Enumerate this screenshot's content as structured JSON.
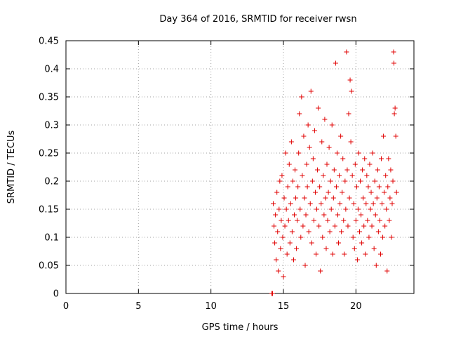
{
  "chart_data": {
    "type": "scatter",
    "title": "Day 364 of 2016, SRMTID for receiver rwsn",
    "xlabel": "GPS time / hours",
    "ylabel": "SRMTID / TECUs",
    "xlim": [
      0,
      24
    ],
    "ylim": [
      0,
      0.45
    ],
    "x_ticks": [
      0,
      5,
      10,
      15,
      20
    ],
    "x_tick_labels": [
      "0",
      "5",
      "10",
      "15",
      "20"
    ],
    "y_ticks": [
      0,
      0.05,
      0.1,
      0.15,
      0.2,
      0.25,
      0.3,
      0.35,
      0.4,
      0.45
    ],
    "y_tick_labels": [
      "0",
      "0.05",
      "0.1",
      "0.15",
      "0.2",
      "0.25",
      "0.3",
      "0.35",
      "0.4",
      "0.45"
    ],
    "grid": true,
    "series": [
      {
        "name": "SRMTID",
        "color": "#e00000",
        "marker": "plus",
        "points": [
          [
            14.2,
            0.0
          ],
          [
            14.25,
            0.0
          ],
          [
            14.3,
            0.16
          ],
          [
            14.35,
            0.12
          ],
          [
            14.4,
            0.09
          ],
          [
            14.45,
            0.14
          ],
          [
            14.5,
            0.06
          ],
          [
            14.55,
            0.18
          ],
          [
            14.6,
            0.11
          ],
          [
            14.65,
            0.04
          ],
          [
            14.7,
            0.15
          ],
          [
            14.75,
            0.2
          ],
          [
            14.8,
            0.08
          ],
          [
            14.85,
            0.13
          ],
          [
            14.9,
            0.21
          ],
          [
            14.95,
            0.1
          ],
          [
            15.0,
            0.03
          ],
          [
            15.05,
            0.17
          ],
          [
            15.1,
            0.12
          ],
          [
            15.15,
            0.25
          ],
          [
            15.2,
            0.15
          ],
          [
            15.25,
            0.07
          ],
          [
            15.3,
            0.19
          ],
          [
            15.35,
            0.13
          ],
          [
            15.4,
            0.23
          ],
          [
            15.45,
            0.09
          ],
          [
            15.5,
            0.16
          ],
          [
            15.55,
            0.27
          ],
          [
            15.6,
            0.11
          ],
          [
            15.65,
            0.2
          ],
          [
            15.7,
            0.06
          ],
          [
            15.75,
            0.14
          ],
          [
            15.8,
            0.22
          ],
          [
            15.85,
            0.17
          ],
          [
            15.9,
            0.08
          ],
          [
            15.95,
            0.13
          ],
          [
            16.0,
            0.19
          ],
          [
            16.05,
            0.25
          ],
          [
            16.1,
            0.32
          ],
          [
            16.15,
            0.15
          ],
          [
            16.2,
            0.1
          ],
          [
            16.25,
            0.35
          ],
          [
            16.3,
            0.21
          ],
          [
            16.35,
            0.12
          ],
          [
            16.4,
            0.28
          ],
          [
            16.45,
            0.17
          ],
          [
            16.5,
            0.05
          ],
          [
            16.55,
            0.14
          ],
          [
            16.6,
            0.23
          ],
          [
            16.65,
            0.19
          ],
          [
            16.7,
            0.3
          ],
          [
            16.75,
            0.11
          ],
          [
            16.8,
            0.26
          ],
          [
            16.85,
            0.16
          ],
          [
            16.9,
            0.36
          ],
          [
            16.95,
            0.09
          ],
          [
            17.0,
            0.2
          ],
          [
            17.05,
            0.24
          ],
          [
            17.1,
            0.13
          ],
          [
            17.15,
            0.29
          ],
          [
            17.2,
            0.18
          ],
          [
            17.25,
            0.07
          ],
          [
            17.3,
            0.15
          ],
          [
            17.35,
            0.22
          ],
          [
            17.4,
            0.33
          ],
          [
            17.45,
            0.12
          ],
          [
            17.5,
            0.19
          ],
          [
            17.55,
            0.04
          ],
          [
            17.6,
            0.16
          ],
          [
            17.65,
            0.27
          ],
          [
            17.7,
            0.1
          ],
          [
            17.75,
            0.21
          ],
          [
            17.8,
            0.14
          ],
          [
            17.85,
            0.31
          ],
          [
            17.9,
            0.17
          ],
          [
            17.95,
            0.08
          ],
          [
            18.0,
            0.23
          ],
          [
            18.05,
            0.13
          ],
          [
            18.1,
            0.18
          ],
          [
            18.15,
            0.26
          ],
          [
            18.2,
            0.11
          ],
          [
            18.25,
            0.2
          ],
          [
            18.3,
            0.15
          ],
          [
            18.35,
            0.3
          ],
          [
            18.4,
            0.07
          ],
          [
            18.45,
            0.17
          ],
          [
            18.5,
            0.22
          ],
          [
            18.55,
            0.12
          ],
          [
            18.6,
            0.41
          ],
          [
            18.65,
            0.19
          ],
          [
            18.7,
            0.25
          ],
          [
            18.75,
            0.14
          ],
          [
            18.8,
            0.09
          ],
          [
            18.85,
            0.21
          ],
          [
            18.9,
            0.16
          ],
          [
            18.95,
            0.28
          ],
          [
            19.0,
            0.11
          ],
          [
            19.05,
            0.18
          ],
          [
            19.1,
            0.24
          ],
          [
            19.15,
            0.13
          ],
          [
            19.2,
            0.07
          ],
          [
            19.25,
            0.2
          ],
          [
            19.3,
            0.15
          ],
          [
            19.35,
            0.43
          ],
          [
            19.4,
            0.22
          ],
          [
            19.45,
            0.12
          ],
          [
            19.5,
            0.32
          ],
          [
            19.55,
            0.17
          ],
          [
            19.6,
            0.38
          ],
          [
            19.65,
            0.27
          ],
          [
            19.7,
            0.36
          ],
          [
            19.75,
            0.21
          ],
          [
            19.8,
            0.1
          ],
          [
            19.85,
            0.16
          ],
          [
            19.9,
            0.08
          ],
          [
            19.95,
            0.23
          ],
          [
            20.0,
            0.13
          ],
          [
            20.05,
            0.19
          ],
          [
            20.1,
            0.06
          ],
          [
            20.15,
            0.15
          ],
          [
            20.2,
            0.25
          ],
          [
            20.25,
            0.11
          ],
          [
            20.3,
            0.2
          ],
          [
            20.35,
            0.14
          ],
          [
            20.4,
            0.09
          ],
          [
            20.45,
            0.22
          ],
          [
            20.5,
            0.17
          ],
          [
            20.55,
            0.12
          ],
          [
            20.6,
            0.24
          ],
          [
            20.65,
            0.07
          ],
          [
            20.7,
            0.16
          ],
          [
            20.75,
            0.21
          ],
          [
            20.8,
            0.13
          ],
          [
            20.85,
            0.19
          ],
          [
            20.9,
            0.1
          ],
          [
            20.95,
            0.23
          ],
          [
            21.0,
            0.15
          ],
          [
            21.05,
            0.18
          ],
          [
            21.1,
            0.12
          ],
          [
            21.15,
            0.25
          ],
          [
            21.2,
            0.16
          ],
          [
            21.25,
            0.08
          ],
          [
            21.3,
            0.2
          ],
          [
            21.35,
            0.14
          ],
          [
            21.4,
            0.05
          ],
          [
            21.45,
            0.17
          ],
          [
            21.5,
            0.22
          ],
          [
            21.55,
            0.11
          ],
          [
            21.6,
            0.19
          ],
          [
            21.65,
            0.13
          ],
          [
            21.7,
            0.07
          ],
          [
            21.75,
            0.24
          ],
          [
            21.8,
            0.16
          ],
          [
            21.85,
            0.1
          ],
          [
            21.9,
            0.28
          ],
          [
            21.95,
            0.18
          ],
          [
            22.0,
            0.12
          ],
          [
            22.05,
            0.21
          ],
          [
            22.1,
            0.15
          ],
          [
            22.15,
            0.04
          ],
          [
            22.2,
            0.19
          ],
          [
            22.25,
            0.24
          ],
          [
            22.3,
            0.13
          ],
          [
            22.35,
            0.17
          ],
          [
            22.4,
            0.22
          ],
          [
            22.45,
            0.1
          ],
          [
            22.5,
            0.16
          ],
          [
            22.55,
            0.2
          ],
          [
            22.6,
            0.43
          ],
          [
            22.62,
            0.41
          ],
          [
            22.65,
            0.32
          ],
          [
            22.7,
            0.33
          ],
          [
            22.75,
            0.28
          ],
          [
            22.8,
            0.18
          ]
        ]
      }
    ]
  }
}
